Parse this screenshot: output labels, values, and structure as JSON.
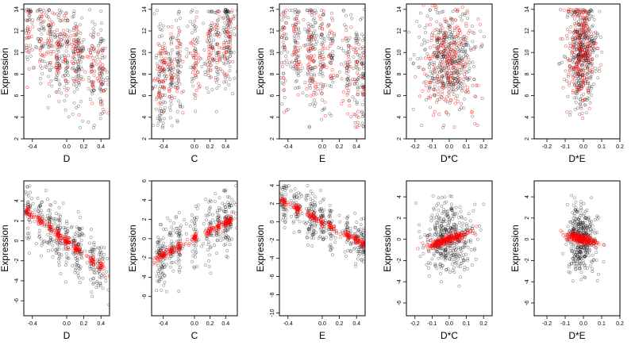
{
  "ylabel": "Expression",
  "series_colors": {
    "observed": "#000000",
    "fitted": "#ff0000"
  },
  "chart_data": [
    {
      "type": "scatter",
      "row": 1,
      "col": 1,
      "xlabel": "D",
      "ylabel": "Expression",
      "xlim": [
        -0.5,
        0.5
      ],
      "ylim": [
        2,
        14.5
      ],
      "xticks": [
        -0.4,
        0,
        0.2,
        0.4
      ],
      "xtick_labels": [
        "-0.4",
        "0.0",
        "0.2",
        "0.4"
      ],
      "yticks": [
        2,
        4,
        6,
        8,
        10,
        12,
        14
      ],
      "ytick_labels": [
        "2",
        "4",
        "6",
        "8",
        "10",
        "12",
        "14"
      ],
      "x_clusters": [
        -0.45,
        -0.3,
        -0.2,
        -0.1,
        0.0,
        0.1,
        0.15,
        0.3,
        0.4
      ],
      "x_spread": 0.02,
      "observed_trend": {
        "intercept": 10,
        "slope": -4.5,
        "sd": 2.2,
        "clip": [
          3,
          14
        ]
      },
      "fitted_trend": {
        "intercept": 9.8,
        "slope": -4.5,
        "sd": 1.8,
        "clip": [
          3,
          14
        ]
      },
      "n_observed": 420,
      "n_fitted": 180
    },
    {
      "type": "scatter",
      "row": 1,
      "col": 2,
      "xlabel": "C",
      "ylabel": "Expression",
      "xlim": [
        -0.55,
        0.55
      ],
      "ylim": [
        2,
        14.5
      ],
      "xticks": [
        -0.4,
        0,
        0.2,
        0.4
      ],
      "xtick_labels": [
        "-0.4",
        "0.0",
        "0.2",
        "0.4"
      ],
      "yticks": [
        2,
        4,
        6,
        8,
        10,
        12,
        14
      ],
      "ytick_labels": [
        "2",
        "4",
        "6",
        "8",
        "10",
        "12",
        "14"
      ],
      "x_clusters": [
        -0.45,
        -0.4,
        -0.3,
        -0.2,
        0.0,
        0.2,
        0.3,
        0.4,
        0.45
      ],
      "x_spread": 0.02,
      "observed_trend": {
        "intercept": 9.5,
        "slope": 4.5,
        "sd": 2.4,
        "clip": [
          3,
          14
        ]
      },
      "fitted_trend": {
        "intercept": 9.5,
        "slope": 4.5,
        "sd": 1.7,
        "clip": [
          3,
          14
        ]
      },
      "n_observed": 420,
      "n_fitted": 180
    },
    {
      "type": "scatter",
      "row": 1,
      "col": 3,
      "xlabel": "E",
      "ylabel": "Expression",
      "xlim": [
        -0.5,
        0.5
      ],
      "ylim": [
        2,
        14.5
      ],
      "xticks": [
        -0.4,
        0,
        0.2,
        0.4
      ],
      "xtick_labels": [
        "-0.4",
        "0.0",
        "0.2",
        "0.4"
      ],
      "yticks": [
        2,
        4,
        6,
        8,
        10,
        12,
        14
      ],
      "ytick_labels": [
        "2",
        "4",
        "6",
        "8",
        "10",
        "12",
        "14"
      ],
      "x_clusters": [
        -0.45,
        -0.3,
        -0.15,
        -0.1,
        0.0,
        0.1,
        0.3,
        0.4,
        0.48
      ],
      "x_spread": 0.02,
      "observed_trend": {
        "intercept": 9.5,
        "slope": -3,
        "sd": 2.5,
        "clip": [
          3,
          14
        ]
      },
      "fitted_trend": {
        "intercept": 9.5,
        "slope": -3,
        "sd": 2.0,
        "clip": [
          3,
          14
        ]
      },
      "n_observed": 420,
      "n_fitted": 180
    },
    {
      "type": "scatter",
      "row": 1,
      "col": 4,
      "xlabel": "D*C",
      "ylabel": "Expression",
      "xlim": [
        -0.25,
        0.25
      ],
      "ylim": [
        2,
        14.5
      ],
      "xticks": [
        -0.2,
        -0.1,
        0,
        0.1,
        0.2
      ],
      "xtick_labels": [
        "-0.2",
        "-0.1",
        "0.0",
        "0.1",
        "0.2"
      ],
      "yticks": [
        2,
        4,
        6,
        8,
        10,
        12,
        14
      ],
      "ytick_labels": [
        "2",
        "4",
        "6",
        "8",
        "10",
        "12",
        "14"
      ],
      "x_clusters": [],
      "x_center": 0.0,
      "x_sd": 0.08,
      "observed_trend": {
        "intercept": 9.3,
        "slope": 0,
        "sd": 2.3,
        "clip": [
          3,
          14
        ]
      },
      "fitted_trend": {
        "intercept": 9.3,
        "slope": 0,
        "sd": 2.6,
        "clip": [
          3,
          14.5
        ]
      },
      "n_observed": 420,
      "n_fitted": 200
    },
    {
      "type": "scatter",
      "row": 1,
      "col": 5,
      "xlabel": "D*E",
      "ylabel": "Expression",
      "xlim": [
        -0.27,
        0.2
      ],
      "ylim": [
        2,
        14.5
      ],
      "xticks": [
        -0.2,
        -0.1,
        0,
        0.1,
        0.2
      ],
      "xtick_labels": [
        "-0.2",
        "-0.1",
        "0.0",
        "0.1",
        "0.2"
      ],
      "yticks": [
        2,
        4,
        6,
        8,
        10,
        12,
        14
      ],
      "ytick_labels": [
        "2",
        "4",
        "6",
        "8",
        "10",
        "12",
        "14"
      ],
      "x_clusters": [],
      "x_center": -0.01,
      "x_sd": 0.04,
      "observed_trend": {
        "intercept": 10,
        "slope": 0,
        "sd": 2.5,
        "clip": [
          3,
          14
        ]
      },
      "fitted_trend": {
        "intercept": 10,
        "slope": 0,
        "sd": 2.4,
        "clip": [
          3,
          14
        ]
      },
      "n_observed": 420,
      "n_fitted": 200
    },
    {
      "type": "scatter",
      "row": 2,
      "col": 1,
      "xlabel": "D",
      "ylabel": "Expression",
      "xlim": [
        -0.5,
        0.5
      ],
      "ylim": [
        -7.5,
        6
      ],
      "xticks": [
        -0.4,
        0,
        0.2,
        0.4
      ],
      "xtick_labels": [
        "-0.4",
        "0.0",
        "0.2",
        "0.4"
      ],
      "yticks": [
        -6,
        -4,
        -2,
        0,
        2,
        4
      ],
      "ytick_labels": [
        "-6",
        "-4",
        "-2",
        "0",
        "2",
        "4"
      ],
      "x_clusters": [
        -0.45,
        -0.3,
        -0.2,
        -0.1,
        0.0,
        0.1,
        0.15,
        0.3,
        0.4
      ],
      "x_spread": 0.02,
      "observed_trend": {
        "intercept": 0,
        "slope": -6.5,
        "sd": 1.4,
        "clip": [
          -7,
          5.5
        ]
      },
      "fitted_trend": {
        "intercept": 0,
        "slope": -6.5,
        "sd": 0.25,
        "clip": [
          -7,
          5.5
        ]
      },
      "n_observed": 380,
      "n_fitted": 220
    },
    {
      "type": "scatter",
      "row": 2,
      "col": 2,
      "xlabel": "C",
      "ylabel": "Expression",
      "xlim": [
        -0.55,
        0.55
      ],
      "ylim": [
        -8,
        6
      ],
      "xticks": [
        -0.4,
        0,
        0.2,
        0.4
      ],
      "xtick_labels": [
        "-0.4",
        "0.0",
        "0.2",
        "0.4"
      ],
      "yticks": [
        -6,
        -4,
        -2,
        0,
        2,
        4,
        6
      ],
      "ytick_labels": [
        "-6",
        "-4",
        "-2",
        "0",
        "2",
        "4",
        "6"
      ],
      "x_clusters": [
        -0.45,
        -0.4,
        -0.3,
        -0.2,
        0.0,
        0.2,
        0.3,
        0.4,
        0.45
      ],
      "x_spread": 0.02,
      "observed_trend": {
        "intercept": 0,
        "slope": 4.2,
        "sd": 1.6,
        "clip": [
          -7.5,
          5.8
        ]
      },
      "fitted_trend": {
        "intercept": 0,
        "slope": 4.2,
        "sd": 0.22,
        "clip": [
          -7.5,
          5.8
        ]
      },
      "n_observed": 380,
      "n_fitted": 220
    },
    {
      "type": "scatter",
      "row": 2,
      "col": 3,
      "xlabel": "E",
      "ylabel": "Expression",
      "xlim": [
        -0.5,
        0.5
      ],
      "ylim": [
        -10.3,
        4.5
      ],
      "xticks": [
        -0.4,
        0,
        0.2,
        0.4
      ],
      "xtick_labels": [
        "-0.4",
        "0.0",
        "0.2",
        "0.4"
      ],
      "yticks": [
        -10,
        -8,
        -6,
        -4,
        -2,
        0,
        2,
        4
      ],
      "ytick_labels": [
        "-10",
        "-8",
        "-6",
        "-4",
        "-2",
        "0",
        "2",
        "4"
      ],
      "x_clusters": [
        -0.45,
        -0.3,
        -0.15,
        -0.1,
        0.0,
        0.1,
        0.3,
        0.4,
        0.48
      ],
      "x_spread": 0.02,
      "observed_trend": {
        "intercept": 0,
        "slope": -5,
        "sd": 1.3,
        "clip": [
          -9.8,
          4
        ]
      },
      "fitted_trend": {
        "intercept": 0,
        "slope": -5,
        "sd": 0.2,
        "clip": [
          -9.8,
          4
        ]
      },
      "n_observed": 380,
      "n_fitted": 220
    },
    {
      "type": "scatter",
      "row": 2,
      "col": 4,
      "xlabel": "D*C",
      "ylabel": "Expression",
      "xlim": [
        -0.25,
        0.25
      ],
      "ylim": [
        -7.2,
        5.5
      ],
      "xticks": [
        -0.2,
        -0.1,
        0,
        0.1,
        0.2
      ],
      "xtick_labels": [
        "-0.2",
        "-0.1",
        "0.0",
        "0.1",
        "0.2"
      ],
      "yticks": [
        -6,
        -4,
        -2,
        0,
        2,
        4
      ],
      "ytick_labels": [
        "-6",
        "-4",
        "-2",
        "0",
        "2",
        "4"
      ],
      "x_clusters": [],
      "x_center": 0.0,
      "x_sd": 0.07,
      "observed_trend": {
        "intercept": 0,
        "slope": 0,
        "sd": 1.6,
        "clip": [
          -6.5,
          5
        ]
      },
      "fitted_trend": {
        "intercept": 0,
        "slope": 5,
        "sd": 0.2,
        "clip": [
          -6.5,
          5
        ]
      },
      "n_observed": 420,
      "n_fitted": 220
    },
    {
      "type": "scatter",
      "row": 2,
      "col": 5,
      "xlabel": "D*E",
      "ylabel": "Expression",
      "xlim": [
        -0.27,
        0.2
      ],
      "ylim": [
        -7.2,
        5.5
      ],
      "xticks": [
        -0.2,
        -0.1,
        0,
        0.1,
        0.2
      ],
      "xtick_labels": [
        "-0.2",
        "-0.1",
        "0.0",
        "0.1",
        "0.2"
      ],
      "yticks": [
        -6,
        -4,
        -2,
        0,
        2,
        4
      ],
      "ytick_labels": [
        "-6",
        "-4",
        "-2",
        "0",
        "2",
        "4"
      ],
      "x_clusters": [],
      "x_center": -0.01,
      "x_sd": 0.04,
      "observed_trend": {
        "intercept": 0,
        "slope": 0,
        "sd": 1.6,
        "clip": [
          -6.5,
          5
        ]
      },
      "fitted_trend": {
        "intercept": 0,
        "slope": -4.5,
        "sd": 0.2,
        "clip": [
          -6.5,
          5
        ]
      },
      "n_observed": 380,
      "n_fitted": 220
    }
  ]
}
